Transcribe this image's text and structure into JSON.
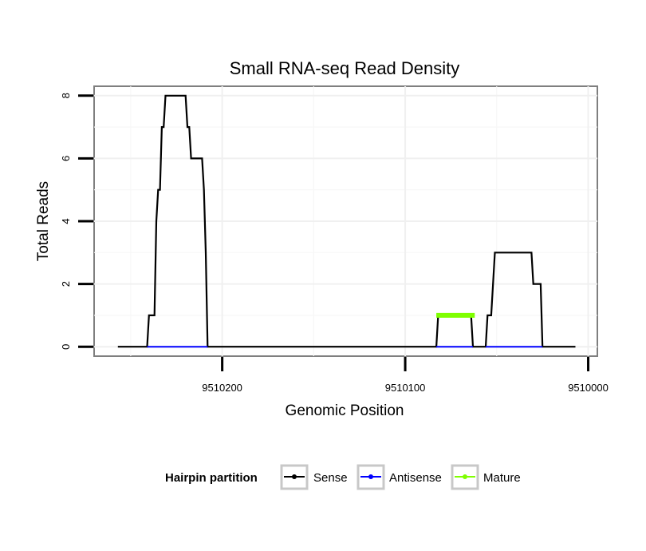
{
  "chart_data": {
    "type": "line",
    "title": "Small RNA-seq Read Density",
    "xlabel": "Genomic Position",
    "ylabel": "Total Reads",
    "x_reversed": true,
    "xlim": [
      9510270,
      9509995
    ],
    "ylim": [
      -0.3,
      8.3
    ],
    "x_ticks": [
      {
        "value": 9510200,
        "label": "9510200"
      },
      {
        "value": 9510100,
        "label": "9510100"
      },
      {
        "value": 9510000,
        "label": "9510000"
      }
    ],
    "y_ticks": [
      {
        "value": 0,
        "label": "0"
      },
      {
        "value": 2,
        "label": "2"
      },
      {
        "value": 4,
        "label": "4"
      },
      {
        "value": 6,
        "label": "6"
      },
      {
        "value": 8,
        "label": "8"
      }
    ],
    "grid": true,
    "legend": {
      "title": "Hairpin partition",
      "position": "bottom",
      "entries": [
        "Sense",
        "Antisense",
        "Mature"
      ]
    },
    "series": [
      {
        "name": "Sense",
        "color": "#000000",
        "points": [
          [
            9510257,
            0
          ],
          [
            9510241,
            0
          ],
          [
            9510240,
            1
          ],
          [
            9510237,
            1
          ],
          [
            9510236,
            4
          ],
          [
            9510235,
            5
          ],
          [
            9510234,
            5
          ],
          [
            9510233,
            7
          ],
          [
            9510232,
            7
          ],
          [
            9510231,
            8
          ],
          [
            9510220,
            8
          ],
          [
            9510219,
            7
          ],
          [
            9510218,
            7
          ],
          [
            9510217,
            6
          ],
          [
            9510211,
            6
          ],
          [
            9510210,
            5
          ],
          [
            9510209,
            3
          ],
          [
            9510208,
            0
          ],
          [
            9510083,
            0
          ],
          [
            9510082,
            1
          ],
          [
            9510064,
            1
          ],
          [
            9510063,
            0
          ],
          [
            9510056,
            0
          ],
          [
            9510055,
            1
          ],
          [
            9510053,
            1
          ],
          [
            9510052,
            2
          ],
          [
            9510051,
            3
          ],
          [
            9510031,
            3
          ],
          [
            9510030,
            2
          ],
          [
            9510026,
            2
          ],
          [
            9510025,
            0
          ],
          [
            9510007,
            0
          ]
        ]
      },
      {
        "name": "Antisense",
        "color": "#0000ff",
        "segments": [
          [
            9510241,
            9510208
          ],
          [
            9510083,
            9510063
          ],
          [
            9510056,
            9510025
          ]
        ],
        "value": 0
      },
      {
        "name": "Mature",
        "color": "#7fff00",
        "segments": [
          [
            9510083,
            9510062
          ]
        ],
        "value": 1
      }
    ]
  }
}
